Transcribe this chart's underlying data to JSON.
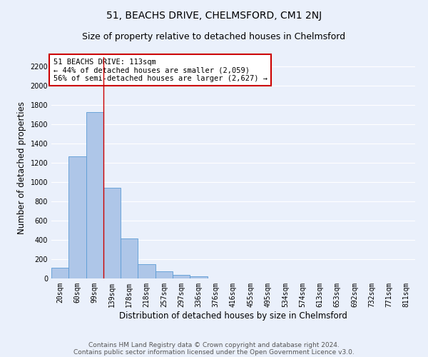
{
  "title": "51, BEACHS DRIVE, CHELMSFORD, CM1 2NJ",
  "subtitle": "Size of property relative to detached houses in Chelmsford",
  "xlabel": "Distribution of detached houses by size in Chelmsford",
  "ylabel": "Number of detached properties",
  "footer1": "Contains HM Land Registry data © Crown copyright and database right 2024.",
  "footer2": "Contains public sector information licensed under the Open Government Licence v3.0.",
  "categories": [
    "20sqm",
    "60sqm",
    "99sqm",
    "139sqm",
    "178sqm",
    "218sqm",
    "257sqm",
    "297sqm",
    "336sqm",
    "376sqm",
    "416sqm",
    "455sqm",
    "495sqm",
    "534sqm",
    "574sqm",
    "613sqm",
    "653sqm",
    "692sqm",
    "732sqm",
    "771sqm",
    "811sqm"
  ],
  "values": [
    110,
    1270,
    1730,
    940,
    415,
    150,
    75,
    35,
    25,
    0,
    0,
    0,
    0,
    0,
    0,
    0,
    0,
    0,
    0,
    0,
    0
  ],
  "bar_color": "#aec6e8",
  "bar_edge_color": "#5b9bd5",
  "annotation_box_text": "51 BEACHS DRIVE: 113sqm\n← 44% of detached houses are smaller (2,059)\n56% of semi-detached houses are larger (2,627) →",
  "annotation_box_color": "#ffffff",
  "annotation_box_edge_color": "#cc0000",
  "vline_x": 2.5,
  "vline_color": "#cc0000",
  "ylim": [
    0,
    2300
  ],
  "yticks": [
    0,
    200,
    400,
    600,
    800,
    1000,
    1200,
    1400,
    1600,
    1800,
    2000,
    2200
  ],
  "bg_color": "#eaf0fb",
  "plot_bg_color": "#eaf0fb",
  "grid_color": "#ffffff",
  "title_fontsize": 10,
  "subtitle_fontsize": 9,
  "axis_label_fontsize": 8.5,
  "tick_fontsize": 7,
  "footer_fontsize": 6.5,
  "annotation_fontsize": 7.5
}
